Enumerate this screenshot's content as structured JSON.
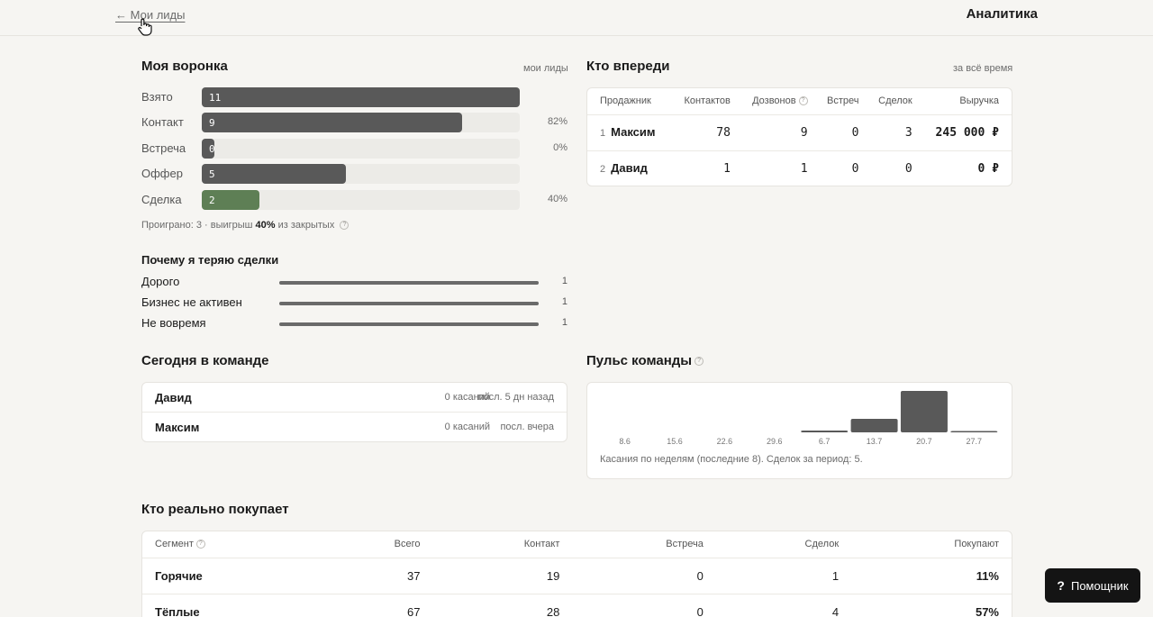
{
  "header": {
    "back_label": "← Мои лиды",
    "title": "Аналитика"
  },
  "funnel": {
    "title": "Моя воронка",
    "scope": "мои лиды",
    "max": 11,
    "stages": [
      {
        "label": "Взято",
        "value": 11,
        "pct": ""
      },
      {
        "label": "Контакт",
        "value": 9,
        "pct": "82%"
      },
      {
        "label": "Встреча",
        "value": 0,
        "pct": "0%"
      },
      {
        "label": "Оффер",
        "value": 5,
        "pct": ""
      },
      {
        "label": "Сделка",
        "value": 2,
        "pct": "40%"
      }
    ],
    "lost_prefix": "Проиграно: 3 · выигрыш ",
    "lost_win": "40%",
    "lost_suffix": " из закрытых"
  },
  "loss_reasons": {
    "title": "Почему я теряю сделки",
    "max": 1,
    "items": [
      {
        "label": "Дорого",
        "count": 1
      },
      {
        "label": "Бизнес не активен",
        "count": 1
      },
      {
        "label": "Не вовремя",
        "count": 1
      }
    ]
  },
  "leaders": {
    "title": "Кто впереди",
    "scope": "за всё время",
    "columns": [
      "Продажник",
      "Контактов",
      "Дозвонов",
      "Встреч",
      "Сделок",
      "Выручка"
    ],
    "rows": [
      {
        "rank": "1",
        "name": "Максим",
        "contacts": "78",
        "calls": "9",
        "meetings": "0",
        "deals": "3",
        "revenue": "245 000 ₽"
      },
      {
        "rank": "2",
        "name": "Давид",
        "contacts": "1",
        "calls": "1",
        "meetings": "0",
        "deals": "0",
        "revenue": "0 ₽"
      }
    ]
  },
  "team_today": {
    "title": "Сегодня в команде",
    "rows": [
      {
        "name": "Давид",
        "touches": "0 касаний",
        "last": "посл. 5 дн назад"
      },
      {
        "name": "Максим",
        "touches": "0 касаний",
        "last": "посл. вчера"
      }
    ]
  },
  "pulse": {
    "title": "Пульс команды",
    "caption": "Касания по неделям (последние 8). Сделок за период: 5."
  },
  "chart_data": {
    "type": "bar",
    "categories": [
      "8.6",
      "15.6",
      "22.6",
      "29.6",
      "6.7",
      "13.7",
      "20.7",
      "27.7"
    ],
    "values": [
      0,
      0,
      0,
      0,
      2,
      15,
      46,
      1
    ],
    "title": "Пульс команды",
    "xlabel": "",
    "ylabel": ""
  },
  "segments": {
    "title": "Кто реально покупает",
    "columns": [
      "Сегмент",
      "Всего",
      "Контакт",
      "Встреча",
      "Сделок",
      "Покупают"
    ],
    "rows": [
      {
        "segment": "Горячие",
        "total": "37",
        "contact": "19",
        "meeting": "0",
        "deals": "1",
        "buy": "11%"
      },
      {
        "segment": "Тёплые",
        "total": "67",
        "contact": "28",
        "meeting": "0",
        "deals": "4",
        "buy": "57%"
      }
    ]
  },
  "assistant": {
    "icon": "?",
    "label": "Помощник"
  },
  "help_glyph": "?"
}
